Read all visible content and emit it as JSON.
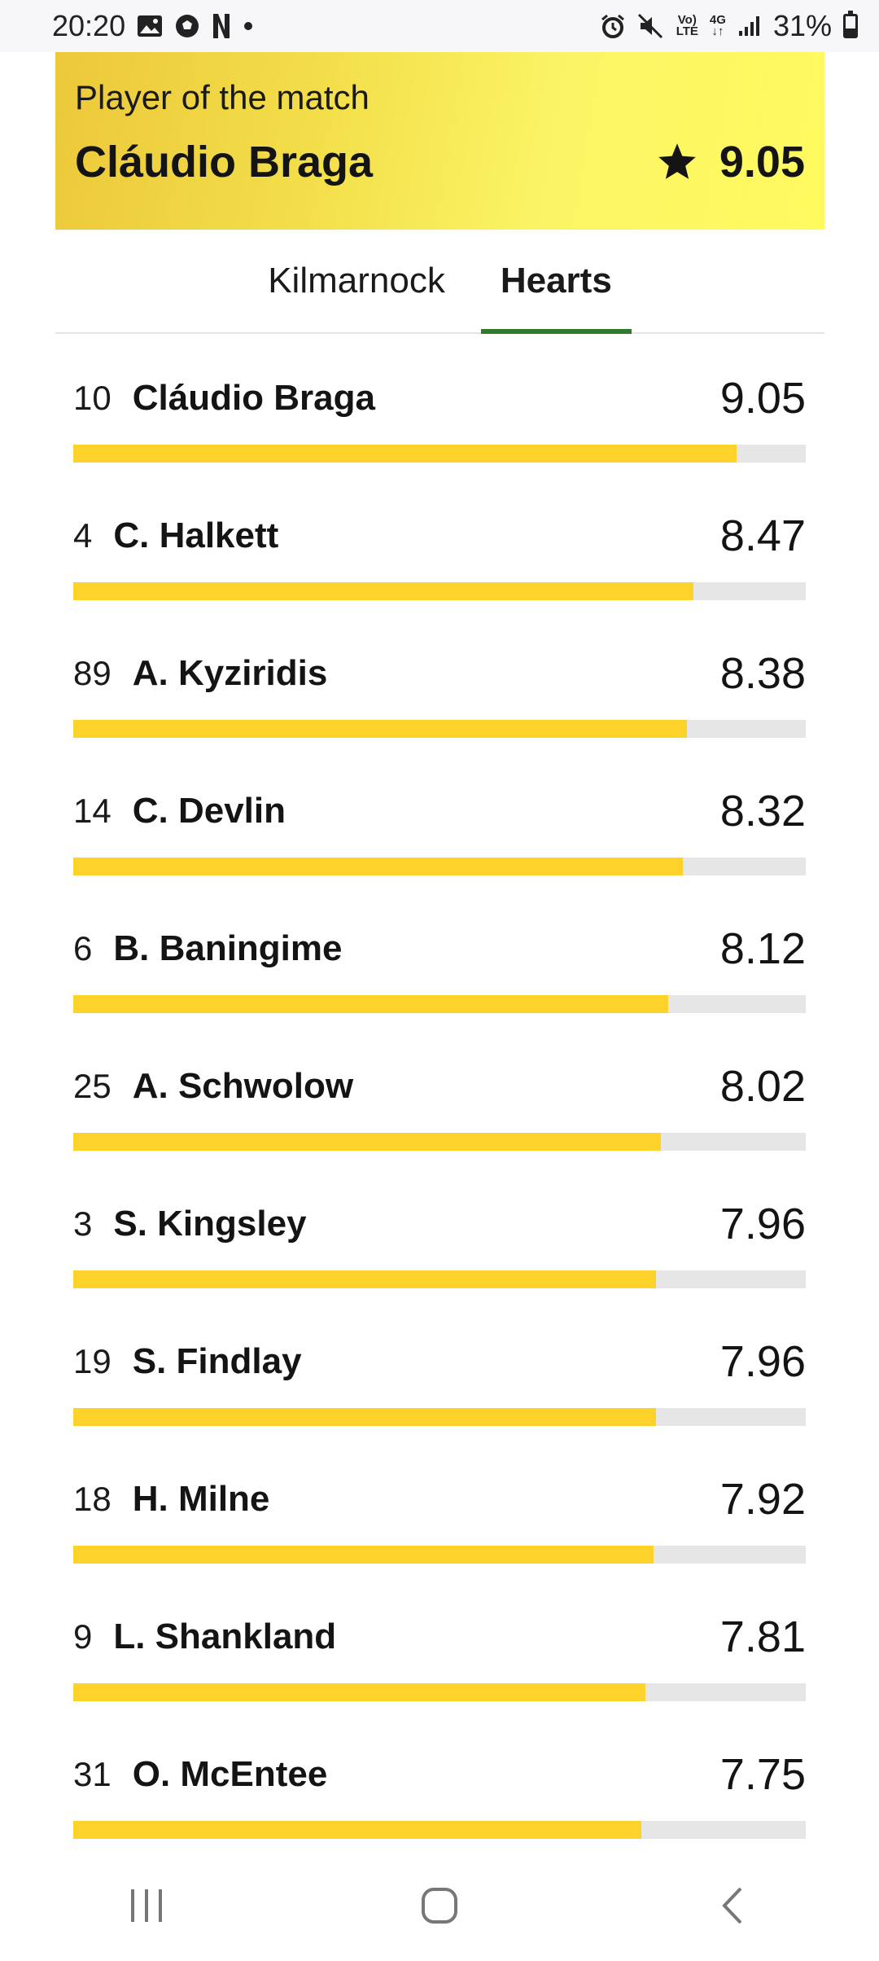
{
  "status": {
    "time": "20:20",
    "battery": "31%",
    "network": "4G",
    "volte_top": "Vo)",
    "volte_bottom": "LTE"
  },
  "potm": {
    "label": "Player of the match",
    "name": "Cláudio Braga",
    "score": "9.05",
    "icon": "star-icon"
  },
  "tabs": [
    {
      "label": "Kilmarnock",
      "active": false
    },
    {
      "label": "Hearts",
      "active": true
    }
  ],
  "players": [
    {
      "number": "10",
      "name": "Cláudio Braga",
      "rating": "9.05",
      "fill": 0.905
    },
    {
      "number": "4",
      "name": "C. Halkett",
      "rating": "8.47",
      "fill": 0.847
    },
    {
      "number": "89",
      "name": "A. Kyziridis",
      "rating": "8.38",
      "fill": 0.838
    },
    {
      "number": "14",
      "name": "C. Devlin",
      "rating": "8.32",
      "fill": 0.832
    },
    {
      "number": "6",
      "name": "B. Baningime",
      "rating": "8.12",
      "fill": 0.812
    },
    {
      "number": "25",
      "name": "A. Schwolow",
      "rating": "8.02",
      "fill": 0.802
    },
    {
      "number": "3",
      "name": "S. Kingsley",
      "rating": "7.96",
      "fill": 0.796
    },
    {
      "number": "19",
      "name": "S. Findlay",
      "rating": "7.96",
      "fill": 0.796
    },
    {
      "number": "18",
      "name": "H. Milne",
      "rating": "7.92",
      "fill": 0.792
    },
    {
      "number": "9",
      "name": "L. Shankland",
      "rating": "7.81",
      "fill": 0.781
    },
    {
      "number": "31",
      "name": "O. McEntee",
      "rating": "7.75",
      "fill": 0.775
    }
  ],
  "colors": {
    "bar": "#fcd22b",
    "track": "#e6e6e6",
    "tab_indicator": "#2f7a2f"
  }
}
